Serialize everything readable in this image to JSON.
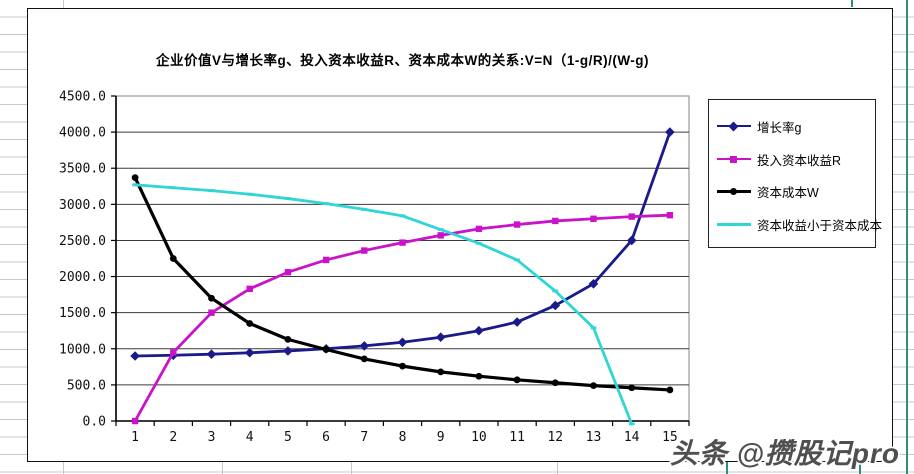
{
  "chart_data": {
    "type": "line",
    "title": "企业价值V与增长率g、投入资本收益R、资本成本W的关系:V=N（1-g/R)/(W-g)",
    "categories": [
      1,
      2,
      3,
      4,
      5,
      6,
      7,
      8,
      9,
      10,
      11,
      12,
      13,
      14,
      15
    ],
    "xlabel": "",
    "ylabel": "",
    "ylim": [
      0,
      4500
    ],
    "ytick_step": 500,
    "ytick_decimals": 1,
    "grid": true,
    "legend_position": "right",
    "series": [
      {
        "name": "增长率g",
        "color": "#1a1a8c",
        "marker": "diamond",
        "values": [
          900,
          910,
          925,
          945,
          970,
          1000,
          1040,
          1090,
          1160,
          1250,
          1370,
          1600,
          1900,
          2500,
          4000
        ]
      },
      {
        "name": "投入资本收益R",
        "color": "#c913c9",
        "marker": "square",
        "values": [
          0,
          950,
          1500,
          1830,
          2060,
          2230,
          2360,
          2470,
          2570,
          2660,
          2720,
          2770,
          2800,
          2830,
          2850
        ]
      },
      {
        "name": "资本成本W",
        "color": "#000000",
        "marker": "circle",
        "values": [
          3370,
          2250,
          1700,
          1350,
          1130,
          990,
          860,
          760,
          680,
          620,
          570,
          530,
          490,
          460,
          430
        ]
      },
      {
        "name": "资本收益小于资本成本",
        "color": "#30d5d5",
        "marker": "dash",
        "values": [
          3270,
          3230,
          3190,
          3140,
          3080,
          3010,
          2930,
          2840,
          2650,
          2460,
          2230,
          1800,
          1290,
          -40,
          null
        ]
      }
    ]
  },
  "watermark": {
    "text": "头条 @攒股记pro"
  }
}
